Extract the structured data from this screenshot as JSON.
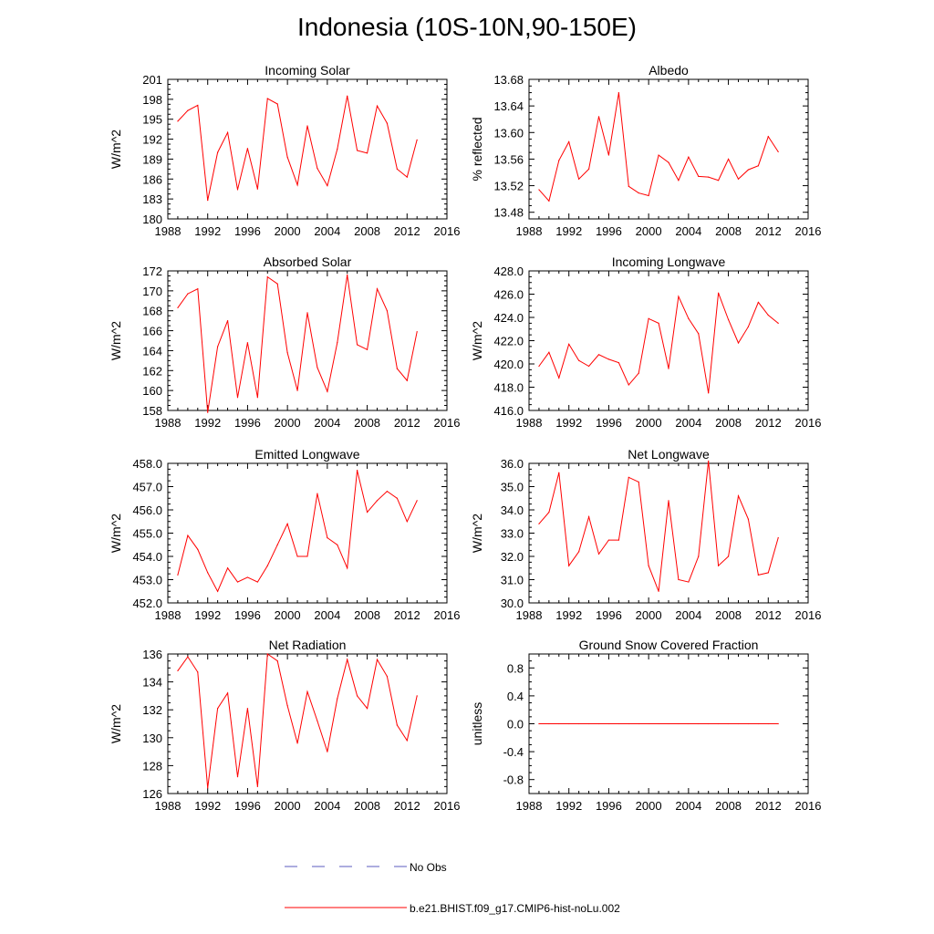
{
  "title": "Indonesia (10S-10N,90-150E)",
  "legend": {
    "entries": [
      {
        "label": "No Obs",
        "color": "#5b5bbf",
        "style": "dashed"
      },
      {
        "label": "b.e21.BHIST.f09_g17.CMIP6-hist-noLu.002",
        "color": "#ff0000",
        "style": "solid"
      }
    ]
  },
  "chart_data": [
    {
      "type": "line",
      "title": "Incoming Solar",
      "ylabel": "W/m^2",
      "xlim": [
        1988,
        2016
      ],
      "ylim": [
        180,
        201
      ],
      "xticks": [
        "1988",
        "1992",
        "1996",
        "2000",
        "2004",
        "2008",
        "2012",
        "2016"
      ],
      "yticks": [
        "180",
        "183",
        "186",
        "189",
        "192",
        "195",
        "198",
        "201"
      ],
      "series": [
        {
          "color": "#ff0000",
          "x": [
            1989,
            1990,
            1991,
            1992,
            1993,
            1994,
            1995,
            1996,
            1997,
            1998,
            1999,
            2000,
            2001,
            2002,
            2003,
            2004,
            2005,
            2006,
            2007,
            2008,
            2009,
            2010,
            2011,
            2012,
            2013
          ],
          "values": [
            194.7,
            196.3,
            197.1,
            182.8,
            190.0,
            193.0,
            184.4,
            190.6,
            184.5,
            198.1,
            197.3,
            189.3,
            185.1,
            194.0,
            187.6,
            185.0,
            190.5,
            198.5,
            190.3,
            189.9,
            197.0,
            194.4,
            187.5,
            186.3,
            191.9
          ]
        }
      ]
    },
    {
      "type": "line",
      "title": "Albedo",
      "ylabel": "% reflected",
      "xlim": [
        1988,
        2016
      ],
      "ylim": [
        13.47,
        13.68
      ],
      "xticks": [
        "1988",
        "1992",
        "1996",
        "2000",
        "2004",
        "2008",
        "2012",
        "2016"
      ],
      "yticks": [
        "13.48",
        "13.52",
        "13.56",
        "13.60",
        "13.64",
        "13.68"
      ],
      "series": [
        {
          "color": "#ff0000",
          "x": [
            1989,
            1990,
            1991,
            1992,
            1993,
            1994,
            1995,
            1996,
            1997,
            1998,
            1999,
            2000,
            2001,
            2002,
            2003,
            2004,
            2005,
            2006,
            2007,
            2008,
            2009,
            2010,
            2011,
            2012,
            2013
          ],
          "values": [
            13.514,
            13.497,
            13.558,
            13.586,
            13.53,
            13.545,
            13.624,
            13.566,
            13.66,
            13.519,
            13.509,
            13.505,
            13.566,
            13.555,
            13.528,
            13.563,
            13.534,
            13.533,
            13.528,
            13.56,
            13.53,
            13.544,
            13.55,
            13.594,
            13.571
          ]
        }
      ]
    },
    {
      "type": "line",
      "title": "Absorbed Solar",
      "ylabel": "W/m^2",
      "xlim": [
        1988,
        2016
      ],
      "ylim": [
        158,
        172
      ],
      "xticks": [
        "1988",
        "1992",
        "1996",
        "2000",
        "2004",
        "2008",
        "2012",
        "2016"
      ],
      "yticks": [
        "158",
        "160",
        "162",
        "164",
        "166",
        "168",
        "170",
        "172"
      ],
      "series": [
        {
          "color": "#ff0000",
          "x": [
            1989,
            1990,
            1991,
            1992,
            1993,
            1994,
            1995,
            1996,
            1997,
            1998,
            1999,
            2000,
            2001,
            2002,
            2003,
            2004,
            2005,
            2006,
            2007,
            2008,
            2009,
            2010,
            2011,
            2012,
            2013
          ],
          "values": [
            168.3,
            169.7,
            170.2,
            157.8,
            164.4,
            167.0,
            159.3,
            164.8,
            159.3,
            171.4,
            170.7,
            163.8,
            160.0,
            167.8,
            162.3,
            159.9,
            164.8,
            171.6,
            164.6,
            164.1,
            170.2,
            168.0,
            162.2,
            161.0,
            165.9
          ]
        }
      ]
    },
    {
      "type": "line",
      "title": "Incoming Longwave",
      "ylabel": "W/m^2",
      "xlim": [
        1988,
        2016
      ],
      "ylim": [
        416,
        428
      ],
      "xticks": [
        "1988",
        "1992",
        "1996",
        "2000",
        "2004",
        "2008",
        "2012",
        "2016"
      ],
      "yticks": [
        "416.0",
        "418.0",
        "420.0",
        "422.0",
        "424.0",
        "426.0",
        "428.0"
      ],
      "series": [
        {
          "color": "#ff0000",
          "x": [
            1989,
            1990,
            1991,
            1992,
            1993,
            1994,
            1995,
            1996,
            1997,
            1998,
            1999,
            2000,
            2001,
            2002,
            2003,
            2004,
            2005,
            2006,
            2007,
            2008,
            2009,
            2010,
            2011,
            2012,
            2013
          ],
          "values": [
            419.8,
            421.0,
            418.8,
            421.7,
            420.3,
            419.8,
            420.8,
            420.4,
            420.1,
            418.2,
            419.2,
            423.9,
            423.5,
            419.6,
            425.8,
            423.9,
            422.6,
            417.5,
            426.1,
            423.8,
            421.8,
            423.2,
            425.3,
            424.2,
            423.5
          ]
        }
      ]
    },
    {
      "type": "line",
      "title": "Emitted Longwave",
      "ylabel": "W/m^2",
      "xlim": [
        1988,
        2016
      ],
      "ylim": [
        452,
        458
      ],
      "xticks": [
        "1988",
        "1992",
        "1996",
        "2000",
        "2004",
        "2008",
        "2012",
        "2016"
      ],
      "yticks": [
        "452.0",
        "453.0",
        "454.0",
        "455.0",
        "456.0",
        "457.0",
        "458.0"
      ],
      "series": [
        {
          "color": "#ff0000",
          "x": [
            1989,
            1990,
            1991,
            1992,
            1993,
            1994,
            1995,
            1996,
            1997,
            1998,
            1999,
            2000,
            2001,
            2002,
            2003,
            2004,
            2005,
            2006,
            2007,
            2008,
            2009,
            2010,
            2011,
            2012,
            2013
          ],
          "values": [
            453.2,
            454.9,
            454.3,
            453.3,
            452.5,
            453.5,
            452.9,
            453.1,
            452.9,
            453.6,
            454.5,
            455.4,
            454.0,
            454.0,
            456.7,
            454.8,
            454.5,
            453.5,
            457.7,
            455.9,
            456.4,
            456.8,
            456.5,
            455.5,
            456.4
          ]
        }
      ]
    },
    {
      "type": "line",
      "title": "Net Longwave",
      "ylabel": "W/m^2",
      "xlim": [
        1988,
        2016
      ],
      "ylim": [
        30,
        36
      ],
      "xticks": [
        "1988",
        "1992",
        "1996",
        "2000",
        "2004",
        "2008",
        "2012",
        "2016"
      ],
      "yticks": [
        "30.0",
        "31.0",
        "32.0",
        "33.0",
        "34.0",
        "35.0",
        "36.0"
      ],
      "series": [
        {
          "color": "#ff0000",
          "x": [
            1989,
            1990,
            1991,
            1992,
            1993,
            1994,
            1995,
            1996,
            1997,
            1998,
            1999,
            2000,
            2001,
            2002,
            2003,
            2004,
            2005,
            2006,
            2007,
            2008,
            2009,
            2010,
            2011,
            2012,
            2013
          ],
          "values": [
            33.4,
            33.9,
            35.6,
            31.6,
            32.2,
            33.7,
            32.1,
            32.7,
            32.7,
            35.4,
            35.2,
            31.6,
            30.5,
            34.4,
            31.0,
            30.9,
            32.0,
            36.1,
            31.6,
            32.0,
            34.6,
            33.6,
            31.2,
            31.3,
            32.8
          ]
        }
      ]
    },
    {
      "type": "line",
      "title": "Net Radiation",
      "ylabel": "W/m^2",
      "xlim": [
        1988,
        2016
      ],
      "ylim": [
        126,
        136
      ],
      "xticks": [
        "1988",
        "1992",
        "1996",
        "2000",
        "2004",
        "2008",
        "2012",
        "2016"
      ],
      "yticks": [
        "126",
        "128",
        "130",
        "132",
        "134",
        "136"
      ],
      "series": [
        {
          "color": "#ff0000",
          "x": [
            1989,
            1990,
            1991,
            1992,
            1993,
            1994,
            1995,
            1996,
            1997,
            1998,
            1999,
            2000,
            2001,
            2002,
            2003,
            2004,
            2005,
            2006,
            2007,
            2008,
            2009,
            2010,
            2011,
            2012,
            2013
          ],
          "values": [
            134.8,
            135.8,
            134.7,
            126.4,
            132.1,
            133.2,
            127.2,
            132.1,
            126.5,
            136.0,
            135.5,
            132.3,
            129.6,
            133.3,
            131.2,
            129.0,
            132.8,
            135.6,
            133.0,
            132.1,
            135.6,
            134.4,
            130.9,
            129.8,
            133.0
          ]
        }
      ]
    },
    {
      "type": "line",
      "title": "Ground Snow Covered Fraction",
      "ylabel": "unitless",
      "xlim": [
        1988,
        2016
      ],
      "ylim": [
        -1.0,
        1.0
      ],
      "xticks": [
        "1988",
        "1992",
        "1996",
        "2000",
        "2004",
        "2008",
        "2012",
        "2016"
      ],
      "yticks": [
        "-0.8",
        "-0.4",
        "0.0",
        "0.4",
        "0.8"
      ],
      "series": [
        {
          "color": "#ff0000",
          "x": [
            1989,
            1990,
            1991,
            1992,
            1993,
            1994,
            1995,
            1996,
            1997,
            1998,
            1999,
            2000,
            2001,
            2002,
            2003,
            2004,
            2005,
            2006,
            2007,
            2008,
            2009,
            2010,
            2011,
            2012,
            2013
          ],
          "values": [
            0,
            0,
            0,
            0,
            0,
            0,
            0,
            0,
            0,
            0,
            0,
            0,
            0,
            0,
            0,
            0,
            0,
            0,
            0,
            0,
            0,
            0,
            0,
            0,
            0
          ]
        }
      ]
    }
  ]
}
